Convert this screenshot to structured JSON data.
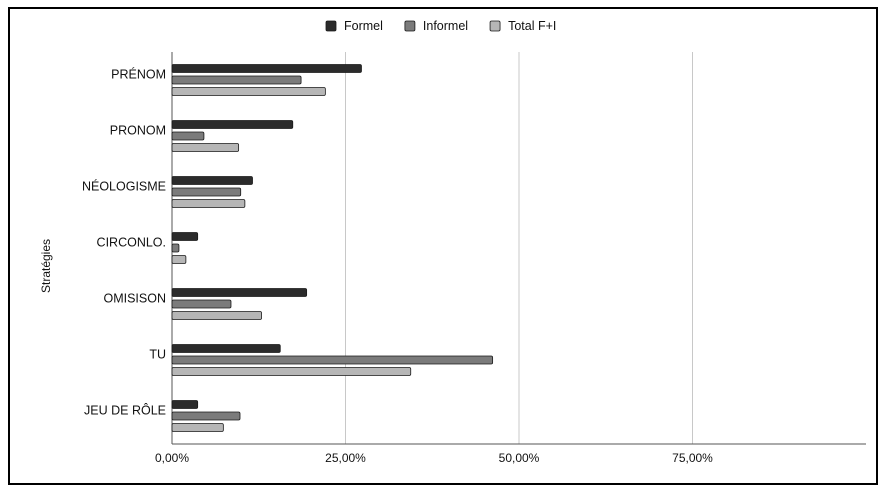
{
  "chart_data": {
    "type": "bar",
    "orientation": "horizontal",
    "title": "",
    "xlabel": "",
    "ylabel": "Stratégies",
    "categories": [
      "PRÉNOM",
      "PRONOM",
      "NÉOLOGISME",
      "CIRCONLO.",
      "OMISISON",
      "TU",
      "JEU DE RÔLE"
    ],
    "series": [
      {
        "name": "Formel",
        "color": "#2b2b2b",
        "values": [
          27.3,
          17.4,
          11.6,
          3.7,
          19.4,
          15.6,
          3.7
        ]
      },
      {
        "name": "Informel",
        "color": "#7b7b7b",
        "values": [
          18.6,
          4.6,
          9.9,
          1.0,
          8.5,
          46.2,
          9.8
        ]
      },
      {
        "name": "Total F+I",
        "color": "#b6b6b6",
        "values": [
          22.1,
          9.6,
          10.5,
          2.0,
          12.9,
          34.4,
          7.4
        ]
      }
    ],
    "xlim": [
      0,
      100
    ],
    "xticks": [
      0,
      25,
      50,
      75
    ],
    "xtick_labels": [
      "0,00%",
      "25,00%",
      "50,00%",
      "75,00%"
    ],
    "grid": true,
    "legend_position": "top"
  }
}
